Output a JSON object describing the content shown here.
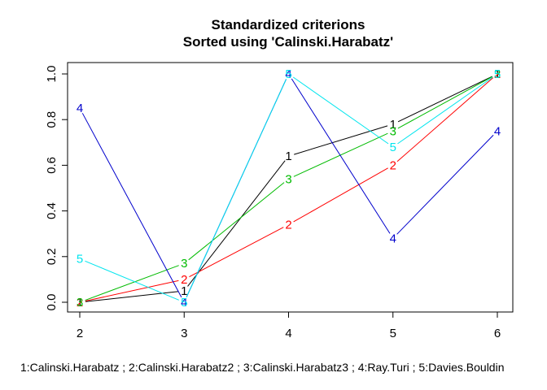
{
  "chart_data": {
    "type": "line",
    "title": "Standardized criterions",
    "subtitle": "Sorted using 'Calinski.Harabatz'",
    "xlabel": "1:Calinski.Harabatz ; 2:Calinski.Harabatz2 ; 3:Calinski.Harabatz3 ; 4:Ray.Turi ; 5:Davies.Bouldin",
    "ylabel": "",
    "x": [
      2,
      3,
      4,
      5,
      6
    ],
    "xlim": [
      2,
      6
    ],
    "ylim": [
      0,
      1
    ],
    "x_ticks": [
      "2",
      "3",
      "4",
      "5",
      "6"
    ],
    "y_ticks": [
      "0.0",
      "0.2",
      "0.4",
      "0.6",
      "0.8",
      "1.0"
    ],
    "grid": false,
    "legend": "none",
    "series": [
      {
        "marker": "1",
        "color": "#000000",
        "values": [
          0.0,
          0.05,
          0.64,
          0.78,
          1.0
        ]
      },
      {
        "marker": "2",
        "color": "#ff0000",
        "values": [
          0.0,
          0.1,
          0.34,
          0.6,
          1.0
        ]
      },
      {
        "marker": "3",
        "color": "#00bb00",
        "values": [
          0.0,
          0.17,
          0.54,
          0.75,
          1.0
        ]
      },
      {
        "marker": "4",
        "color": "#0000cc",
        "values": [
          0.85,
          0.0,
          1.0,
          0.28,
          0.75
        ]
      },
      {
        "marker": "5",
        "color": "#00e5ee",
        "values": [
          0.19,
          0.0,
          1.0,
          0.68,
          1.0
        ]
      }
    ]
  }
}
